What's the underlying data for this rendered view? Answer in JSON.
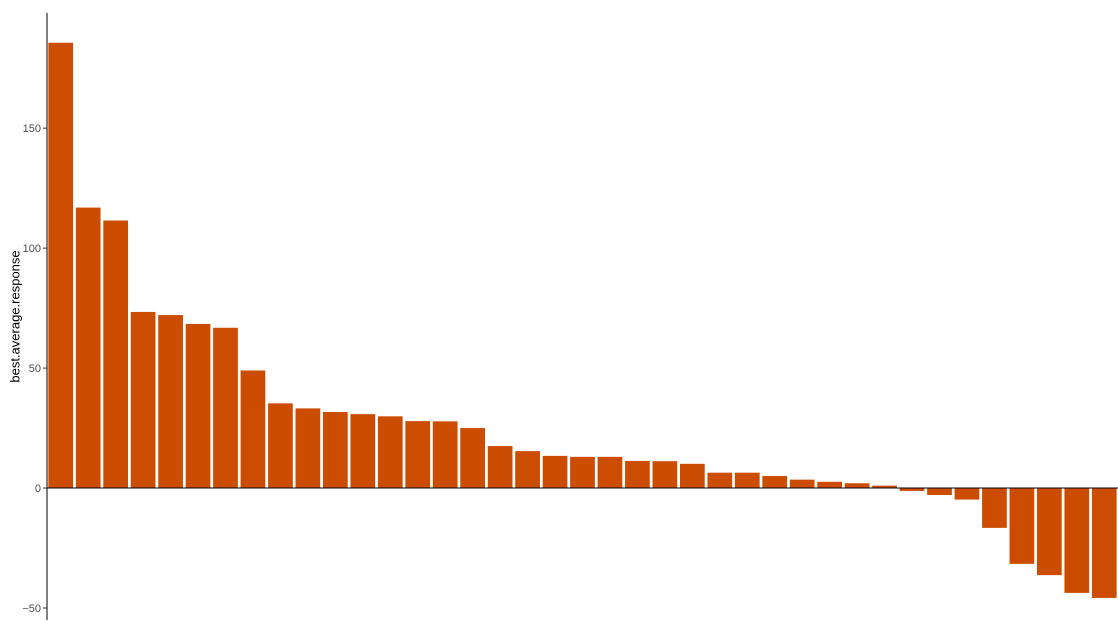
{
  "chart_data": {
    "type": "bar",
    "title": "",
    "xlabel": "",
    "ylabel": "best.average.response",
    "ylim": [
      -55,
      198
    ],
    "yticks": [
      -50,
      0,
      50,
      100,
      150
    ],
    "grid": false,
    "legend": "none",
    "bar_color": "#CC4C02",
    "values": [
      185.6,
      116.9,
      111.5,
      73.4,
      72.1,
      68.4,
      66.8,
      49.0,
      35.3,
      33.2,
      31.7,
      30.8,
      29.9,
      27.9,
      27.8,
      25.0,
      17.5,
      15.4,
      13.4,
      13.0,
      13.0,
      11.3,
      11.2,
      10.1,
      6.4,
      6.4,
      5.0,
      3.5,
      2.6,
      2.0,
      1.0,
      -1.2,
      -2.9,
      -4.8,
      -16.6,
      -31.6,
      -36.3,
      -43.7,
      -45.8
    ]
  }
}
